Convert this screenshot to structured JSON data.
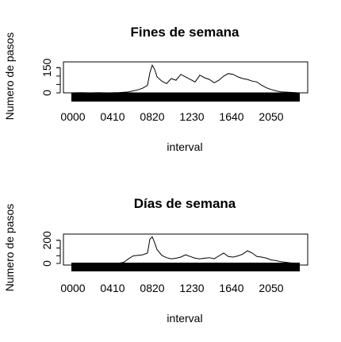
{
  "chart_data": [
    {
      "type": "line",
      "title": "Fines de semana",
      "xlabel": "interval",
      "ylabel": "Numero de pasos",
      "ylim": [
        0,
        175
      ],
      "yticks": [
        0,
        150
      ],
      "xticks": [
        "0000",
        "0410",
        "0820",
        "1230",
        "1640",
        "2050"
      ],
      "grid": false,
      "x": [
        "0000",
        "0100",
        "0200",
        "0300",
        "0400",
        "0500",
        "0600",
        "0630",
        "0700",
        "0730",
        "0800",
        "0815",
        "0830",
        "0845",
        "0900",
        "0930",
        "1000",
        "1030",
        "1100",
        "1130",
        "1200",
        "1230",
        "1300",
        "1330",
        "1400",
        "1430",
        "1500",
        "1530",
        "1600",
        "1630",
        "1700",
        "1730",
        "1800",
        "1830",
        "1900",
        "1930",
        "2000",
        "2030",
        "2100",
        "2130",
        "2200",
        "2300",
        "2355"
      ],
      "values": [
        0,
        1,
        0,
        1,
        0,
        2,
        5,
        12,
        18,
        28,
        45,
        120,
        165,
        140,
        95,
        70,
        55,
        85,
        75,
        110,
        95,
        80,
        65,
        105,
        90,
        80,
        60,
        75,
        100,
        115,
        110,
        95,
        85,
        80,
        70,
        65,
        45,
        30,
        20,
        12,
        6,
        3,
        0
      ]
    },
    {
      "type": "line",
      "title": "Días de semana",
      "xlabel": "interval",
      "ylabel": "Numero de pasos",
      "ylim": [
        0,
        240
      ],
      "yticks": [
        0,
        200
      ],
      "xticks": [
        "0000",
        "0410",
        "0820",
        "1230",
        "1640",
        "2050"
      ],
      "grid": false,
      "x": [
        "0000",
        "0100",
        "0200",
        "0300",
        "0400",
        "0500",
        "0530",
        "0600",
        "0630",
        "0700",
        "0730",
        "0800",
        "0815",
        "0830",
        "0845",
        "0900",
        "0930",
        "1000",
        "1030",
        "1100",
        "1130",
        "1200",
        "1230",
        "1300",
        "1330",
        "1400",
        "1430",
        "1500",
        "1530",
        "1600",
        "1630",
        "1700",
        "1730",
        "1800",
        "1830",
        "1900",
        "1930",
        "2000",
        "2030",
        "2100",
        "2130",
        "2200",
        "2300",
        "2355"
      ],
      "values": [
        2,
        1,
        0,
        1,
        0,
        2,
        10,
        40,
        65,
        70,
        75,
        90,
        210,
        230,
        180,
        120,
        70,
        50,
        40,
        45,
        55,
        75,
        60,
        45,
        40,
        45,
        50,
        40,
        65,
        90,
        60,
        55,
        65,
        80,
        110,
        90,
        60,
        55,
        45,
        30,
        25,
        15,
        5,
        2
      ]
    }
  ]
}
